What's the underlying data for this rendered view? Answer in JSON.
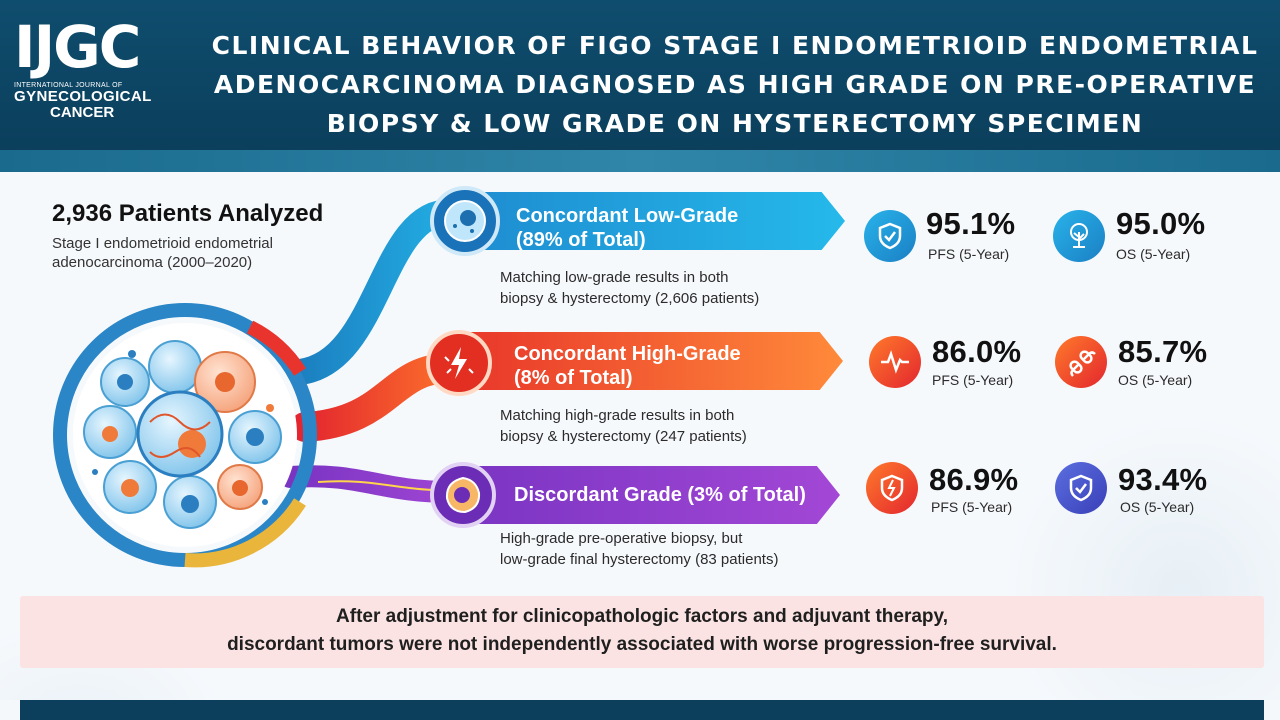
{
  "header": {
    "logo_main": "IJGC",
    "logo_line1": "INTERNATIONAL JOURNAL OF",
    "logo_line2": "GYNECOLOGICAL",
    "logo_line3": "CANCER",
    "title_lines": [
      "CLINICAL BEHAVIOR OF FIGO STAGE I ENDOMETRIOID ENDOMETRIAL",
      "ADENOCARCINOMA DIAGNOSED AS HIGH GRADE ON PRE-OPERATIVE",
      "BIOPSY & LOW GRADE ON HYSTERECTOMY SPECIMEN"
    ]
  },
  "cohort": {
    "title": "2,936 Patients Analyzed",
    "subtitle": "Stage I endometrioid endometrial adenocarcinoma (2000–2020)"
  },
  "groups": [
    {
      "label_line1": "Concordant Low-Grade",
      "label_line2": "(89% of Total)",
      "icon": "cell-icon",
      "description_line1": "Matching low-grade results in both",
      "description_line2": "biopsy & hysterectomy (2,606 patients)",
      "color": "#1aa6e0",
      "pfs_value": "95.1%",
      "pfs_label": "PFS (5-Year)",
      "pfs_icon": "shield-check-icon",
      "os_value": "95.0%",
      "os_label": "OS (5-Year)",
      "os_icon": "tree-icon"
    },
    {
      "label_line1": "Concordant High-Grade",
      "label_line2": "(8% of Total)",
      "icon": "lightning-icon",
      "description_line1": "Matching high-grade results in both",
      "description_line2": "biopsy & hysterectomy (247 patients)",
      "color": "#f2562b",
      "pfs_value": "86.0%",
      "pfs_label": "PFS (5-Year)",
      "pfs_icon": "heartbeat-icon",
      "os_value": "85.7%",
      "os_label": "OS (5-Year)",
      "os_icon": "broken-link-icon"
    },
    {
      "label_line1": "Discordant Grade (3% of Total)",
      "label_line2": "",
      "icon": "cell-icon",
      "description_line1": "High-grade pre-operative biopsy, but",
      "description_line2": "low-grade final hysterectomy (83 patients)",
      "color": "#8a3fc7",
      "pfs_value": "86.9%",
      "pfs_label": "PFS (5-Year)",
      "pfs_icon": "broken-shield-icon",
      "os_value": "93.4%",
      "os_label": "OS (5-Year)",
      "os_icon": "shield-check-icon"
    }
  ],
  "conclusion": {
    "line1": "After adjustment for clinicopathologic factors and adjuvant therapy,",
    "line2": "discordant tumors were not independently associated with worse progression-free survival."
  },
  "colors": {
    "header_bg": "#0b3f5c",
    "low_grade": "#1aa6e0",
    "high_grade": "#f2562b",
    "discordant": "#8a3fc7",
    "conclusion_bg": "#fbe3e3"
  }
}
